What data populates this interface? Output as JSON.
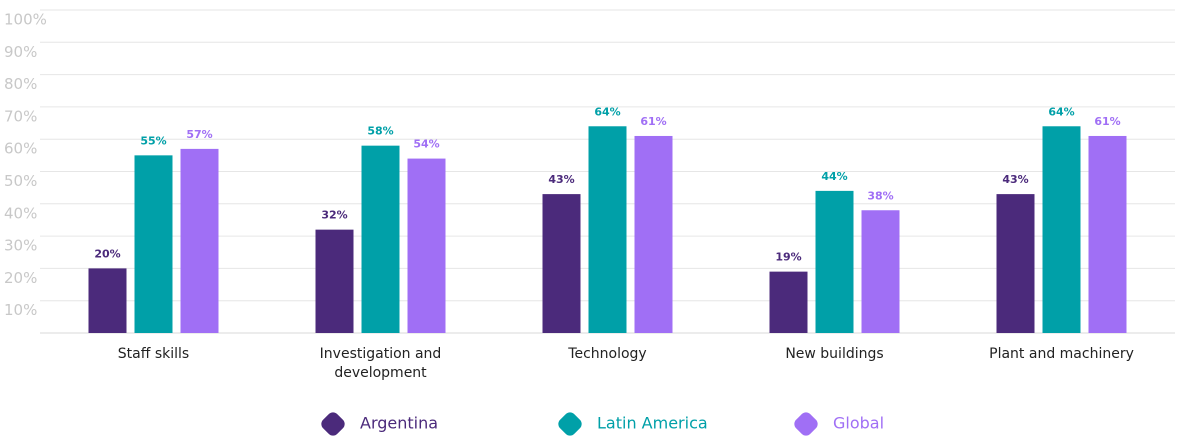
{
  "chart_data": {
    "type": "bar",
    "categories": [
      "Staff skills",
      "Investigation and development",
      "Technology",
      "New buildings",
      "Plant and machinery"
    ],
    "series": [
      {
        "name": "Argentina",
        "color": "#4b2a7b",
        "values": [
          20,
          32,
          43,
          19,
          43
        ],
        "value_labels": [
          "20%",
          "32%",
          "43%",
          "19%",
          "43%"
        ]
      },
      {
        "name": "Latin America",
        "color": "#00a0a8",
        "values": [
          55,
          58,
          64,
          44,
          64
        ],
        "value_labels": [
          "55%",
          "58%",
          "64%",
          "44%",
          "64%"
        ]
      },
      {
        "name": "Global",
        "color": "#a06ff5",
        "values": [
          57,
          54,
          61,
          38,
          61
        ],
        "value_labels": [
          "57%",
          "54%",
          "61%",
          "38%",
          "61%"
        ]
      }
    ],
    "ylim": [
      0,
      100
    ],
    "yticks": [
      {
        "value": 10,
        "label": "10%"
      },
      {
        "value": 20,
        "label": "20%"
      },
      {
        "value": 30,
        "label": "30%"
      },
      {
        "value": 40,
        "label": "40%"
      },
      {
        "value": 50,
        "label": "50%"
      },
      {
        "value": 60,
        "label": "60%"
      },
      {
        "value": 70,
        "label": "70%"
      },
      {
        "value": 80,
        "label": "80%"
      },
      {
        "value": 90,
        "label": "90%"
      },
      {
        "value": 100,
        "label": "100%"
      }
    ],
    "grid": true
  }
}
